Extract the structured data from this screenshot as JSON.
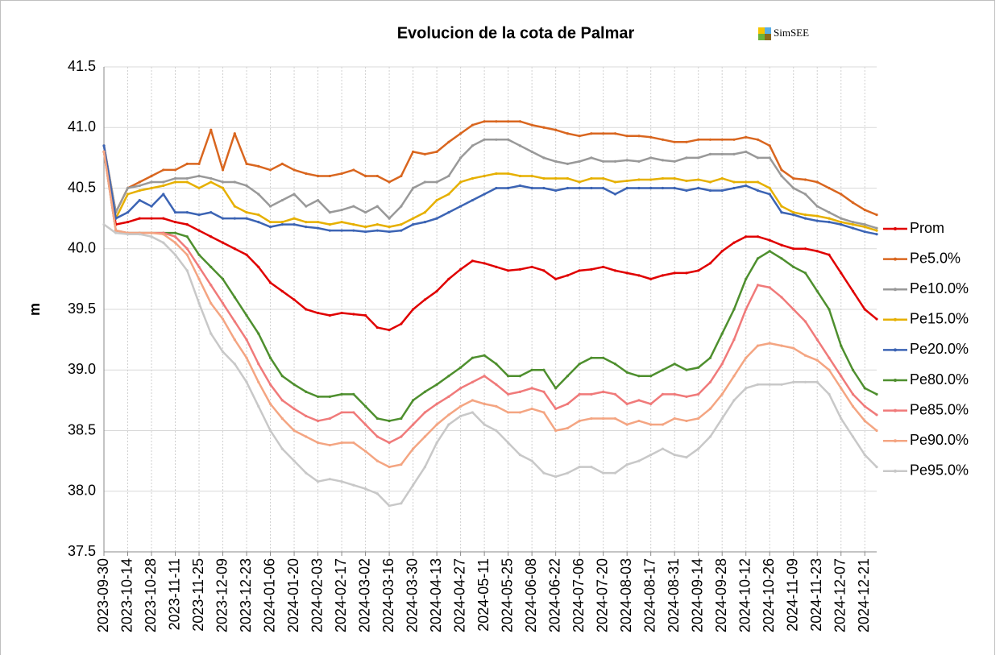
{
  "chart_data": {
    "type": "line",
    "title": "Evolucion de la cota de Palmar",
    "annotation": "SimSEE",
    "y_label": "m",
    "x": [
      "2023-09-30",
      "2023-10-07",
      "2023-10-14",
      "2023-10-21",
      "2023-10-28",
      "2023-11-04",
      "2023-11-11",
      "2023-11-18",
      "2023-11-25",
      "2023-12-02",
      "2023-12-09",
      "2023-12-16",
      "2023-12-23",
      "2023-12-30",
      "2024-01-06",
      "2024-01-13",
      "2024-01-20",
      "2024-01-27",
      "2024-02-03",
      "2024-02-10",
      "2024-02-17",
      "2024-02-24",
      "2024-03-02",
      "2024-03-09",
      "2024-03-16",
      "2024-03-23",
      "2024-03-30",
      "2024-04-06",
      "2024-04-13",
      "2024-04-20",
      "2024-04-27",
      "2024-05-04",
      "2024-05-11",
      "2024-05-18",
      "2024-05-25",
      "2024-06-01",
      "2024-06-08",
      "2024-06-15",
      "2024-06-22",
      "2024-06-29",
      "2024-07-06",
      "2024-07-13",
      "2024-07-20",
      "2024-07-27",
      "2024-08-03",
      "2024-08-10",
      "2024-08-17",
      "2024-08-24",
      "2024-08-31",
      "2024-09-07",
      "2024-09-14",
      "2024-09-21",
      "2024-09-28",
      "2024-10-05",
      "2024-10-12",
      "2024-10-19",
      "2024-10-26",
      "2024-11-02",
      "2024-11-09",
      "2024-11-16",
      "2024-11-23",
      "2024-11-30",
      "2024-12-07",
      "2024-12-14",
      "2024-12-21",
      "2024-12-28"
    ],
    "xlim": [
      "2023-09-30",
      "2024-12-28"
    ],
    "xticks": [
      "2023-09-30",
      "2023-10-14",
      "2023-10-28",
      "2023-11-11",
      "2023-11-25",
      "2023-12-09",
      "2023-12-23",
      "2024-01-06",
      "2024-01-20",
      "2024-02-03",
      "2024-02-17",
      "2024-03-02",
      "2024-03-16",
      "2024-03-30",
      "2024-04-13",
      "2024-04-27",
      "2024-05-11",
      "2024-05-25",
      "2024-06-08",
      "2024-06-22",
      "2024-07-06",
      "2024-07-20",
      "2024-08-03",
      "2024-08-17",
      "2024-08-31",
      "2024-09-14",
      "2024-09-28",
      "2024-10-12",
      "2024-10-26",
      "2024-11-09",
      "2024-11-23",
      "2024-12-07",
      "2024-12-21"
    ],
    "ylim": [
      37.5,
      41.5
    ],
    "yticks": [
      37.5,
      {
        "value": 38,
        "label": "38.0"
      },
      38.5,
      {
        "value": 39,
        "label": "39.0"
      },
      39.5,
      {
        "value": 40,
        "label": "40.0"
      },
      40.5,
      {
        "value": 41,
        "label": "41.0"
      },
      41.5
    ],
    "grid": true,
    "legend": "right",
    "series": [
      {
        "name": "Prom",
        "color": "#e00000",
        "values": [
          40.8,
          40.2,
          40.22,
          40.25,
          40.25,
          40.25,
          40.22,
          40.2,
          40.15,
          40.1,
          40.05,
          40.0,
          39.95,
          39.85,
          39.72,
          39.65,
          39.58,
          39.5,
          39.47,
          39.45,
          39.47,
          39.46,
          39.45,
          39.35,
          39.33,
          39.38,
          39.5,
          39.58,
          39.65,
          39.75,
          39.83,
          39.9,
          39.88,
          39.85,
          39.82,
          39.83,
          39.85,
          39.82,
          39.75,
          39.78,
          39.82,
          39.83,
          39.85,
          39.82,
          39.8,
          39.78,
          39.75,
          39.78,
          39.8,
          39.8,
          39.82,
          39.88,
          39.98,
          40.05,
          40.1,
          40.1,
          40.07,
          40.03,
          40.0,
          40.0,
          39.98,
          39.95,
          39.8,
          39.65,
          39.5,
          39.42
        ]
      },
      {
        "name": "Pe5.0%",
        "color": "#d9661f",
        "values": [
          40.85,
          40.3,
          40.5,
          40.55,
          40.6,
          40.65,
          40.65,
          40.7,
          40.7,
          40.98,
          40.65,
          40.95,
          40.7,
          40.68,
          40.65,
          40.7,
          40.65,
          40.62,
          40.6,
          40.6,
          40.62,
          40.65,
          40.6,
          40.6,
          40.55,
          40.6,
          40.8,
          40.78,
          40.8,
          40.88,
          40.95,
          41.02,
          41.05,
          41.05,
          41.05,
          41.05,
          41.02,
          41.0,
          40.98,
          40.95,
          40.93,
          40.95,
          40.95,
          40.95,
          40.93,
          40.93,
          40.92,
          40.9,
          40.88,
          40.88,
          40.9,
          40.9,
          40.9,
          40.9,
          40.92,
          40.9,
          40.85,
          40.65,
          40.58,
          40.57,
          40.55,
          40.5,
          40.45,
          40.38,
          40.32,
          40.28
        ]
      },
      {
        "name": "Pe10.0%",
        "color": "#999999",
        "values": [
          40.85,
          40.3,
          40.5,
          40.52,
          40.55,
          40.55,
          40.58,
          40.58,
          40.6,
          40.58,
          40.55,
          40.55,
          40.52,
          40.45,
          40.35,
          40.4,
          40.45,
          40.35,
          40.4,
          40.3,
          40.32,
          40.35,
          40.3,
          40.35,
          40.25,
          40.35,
          40.5,
          40.55,
          40.55,
          40.6,
          40.75,
          40.85,
          40.9,
          40.9,
          40.9,
          40.85,
          40.8,
          40.75,
          40.72,
          40.7,
          40.72,
          40.75,
          40.72,
          40.72,
          40.73,
          40.72,
          40.75,
          40.73,
          40.72,
          40.75,
          40.75,
          40.78,
          40.78,
          40.78,
          40.8,
          40.75,
          40.75,
          40.6,
          40.5,
          40.45,
          40.35,
          40.3,
          40.25,
          40.22,
          40.2,
          40.17
        ]
      },
      {
        "name": "Pe15.0%",
        "color": "#e6b000",
        "values": [
          40.8,
          40.25,
          40.45,
          40.48,
          40.5,
          40.52,
          40.55,
          40.55,
          40.5,
          40.55,
          40.5,
          40.35,
          40.3,
          40.28,
          40.22,
          40.22,
          40.25,
          40.22,
          40.22,
          40.2,
          40.22,
          40.2,
          40.18,
          40.2,
          40.18,
          40.2,
          40.25,
          40.3,
          40.4,
          40.45,
          40.55,
          40.58,
          40.6,
          40.62,
          40.62,
          40.6,
          40.6,
          40.58,
          40.58,
          40.58,
          40.55,
          40.58,
          40.58,
          40.55,
          40.56,
          40.57,
          40.57,
          40.58,
          40.58,
          40.56,
          40.57,
          40.55,
          40.58,
          40.55,
          40.55,
          40.55,
          40.5,
          40.35,
          40.3,
          40.28,
          40.27,
          40.25,
          40.22,
          40.2,
          40.18,
          40.15
        ]
      },
      {
        "name": "Pe20.0%",
        "color": "#3c64b4",
        "values": [
          40.85,
          40.25,
          40.3,
          40.4,
          40.35,
          40.45,
          40.3,
          40.3,
          40.28,
          40.3,
          40.25,
          40.25,
          40.25,
          40.22,
          40.18,
          40.2,
          40.2,
          40.18,
          40.17,
          40.15,
          40.15,
          40.15,
          40.14,
          40.15,
          40.14,
          40.15,
          40.2,
          40.22,
          40.25,
          40.3,
          40.35,
          40.4,
          40.45,
          40.5,
          40.5,
          40.52,
          40.5,
          40.5,
          40.48,
          40.5,
          40.5,
          40.5,
          40.5,
          40.45,
          40.5,
          40.5,
          40.5,
          40.5,
          40.5,
          40.48,
          40.5,
          40.48,
          40.48,
          40.5,
          40.52,
          40.48,
          40.45,
          40.3,
          40.28,
          40.25,
          40.23,
          40.22,
          40.2,
          40.17,
          40.14,
          40.12
        ]
      },
      {
        "name": "Pe80.0%",
        "color": "#4e8f2e",
        "values": [
          40.8,
          40.15,
          40.13,
          40.13,
          40.13,
          40.13,
          40.13,
          40.1,
          39.95,
          39.85,
          39.75,
          39.6,
          39.45,
          39.3,
          39.1,
          38.95,
          38.88,
          38.82,
          38.78,
          38.78,
          38.8,
          38.8,
          38.7,
          38.6,
          38.58,
          38.6,
          38.75,
          38.82,
          38.88,
          38.95,
          39.02,
          39.1,
          39.12,
          39.05,
          38.95,
          38.95,
          39.0,
          39.0,
          38.85,
          38.95,
          39.05,
          39.1,
          39.1,
          39.05,
          38.98,
          38.95,
          38.95,
          39.0,
          39.05,
          39.0,
          39.02,
          39.1,
          39.3,
          39.5,
          39.75,
          39.92,
          39.98,
          39.92,
          39.85,
          39.8,
          39.65,
          39.5,
          39.2,
          39.0,
          38.85,
          38.8
        ]
      },
      {
        "name": "Pe85.0%",
        "color": "#f07a7a",
        "values": [
          40.8,
          40.15,
          40.13,
          40.13,
          40.13,
          40.13,
          40.1,
          40.0,
          39.85,
          39.7,
          39.55,
          39.4,
          39.25,
          39.05,
          38.88,
          38.75,
          38.68,
          38.62,
          38.58,
          38.6,
          38.65,
          38.65,
          38.55,
          38.45,
          38.4,
          38.45,
          38.55,
          38.65,
          38.72,
          38.78,
          38.85,
          38.9,
          38.95,
          38.88,
          38.8,
          38.82,
          38.85,
          38.82,
          38.68,
          38.72,
          38.8,
          38.8,
          38.82,
          38.8,
          38.72,
          38.75,
          38.72,
          38.8,
          38.8,
          38.78,
          38.8,
          38.9,
          39.05,
          39.25,
          39.5,
          39.7,
          39.68,
          39.6,
          39.5,
          39.4,
          39.25,
          39.1,
          38.95,
          38.8,
          38.7,
          38.63
        ]
      },
      {
        "name": "Pe90.0%",
        "color": "#f4a582",
        "values": [
          40.8,
          40.15,
          40.13,
          40.13,
          40.13,
          40.12,
          40.05,
          39.95,
          39.75,
          39.55,
          39.42,
          39.25,
          39.1,
          38.9,
          38.72,
          38.6,
          38.5,
          38.45,
          38.4,
          38.38,
          38.4,
          38.4,
          38.33,
          38.25,
          38.2,
          38.22,
          38.35,
          38.45,
          38.55,
          38.63,
          38.7,
          38.75,
          38.72,
          38.7,
          38.65,
          38.65,
          38.68,
          38.65,
          38.5,
          38.52,
          38.58,
          38.6,
          38.6,
          38.6,
          38.55,
          38.58,
          38.55,
          38.55,
          38.6,
          38.58,
          38.6,
          38.68,
          38.8,
          38.95,
          39.1,
          39.2,
          39.22,
          39.2,
          39.18,
          39.12,
          39.08,
          39.0,
          38.85,
          38.7,
          38.58,
          38.5
        ]
      },
      {
        "name": "Pe95.0%",
        "color": "#c8c8c8",
        "values": [
          40.2,
          40.13,
          40.12,
          40.12,
          40.1,
          40.05,
          39.95,
          39.82,
          39.55,
          39.3,
          39.15,
          39.05,
          38.9,
          38.7,
          38.5,
          38.35,
          38.25,
          38.15,
          38.08,
          38.1,
          38.08,
          38.05,
          38.02,
          37.98,
          37.88,
          37.9,
          38.05,
          38.2,
          38.4,
          38.55,
          38.62,
          38.65,
          38.55,
          38.5,
          38.4,
          38.3,
          38.25,
          38.15,
          38.12,
          38.15,
          38.2,
          38.2,
          38.15,
          38.15,
          38.22,
          38.25,
          38.3,
          38.35,
          38.3,
          38.28,
          38.35,
          38.45,
          38.6,
          38.75,
          38.85,
          38.88,
          38.88,
          38.88,
          38.9,
          38.9,
          38.9,
          38.8,
          38.6,
          38.45,
          38.3,
          38.2
        ]
      }
    ]
  }
}
